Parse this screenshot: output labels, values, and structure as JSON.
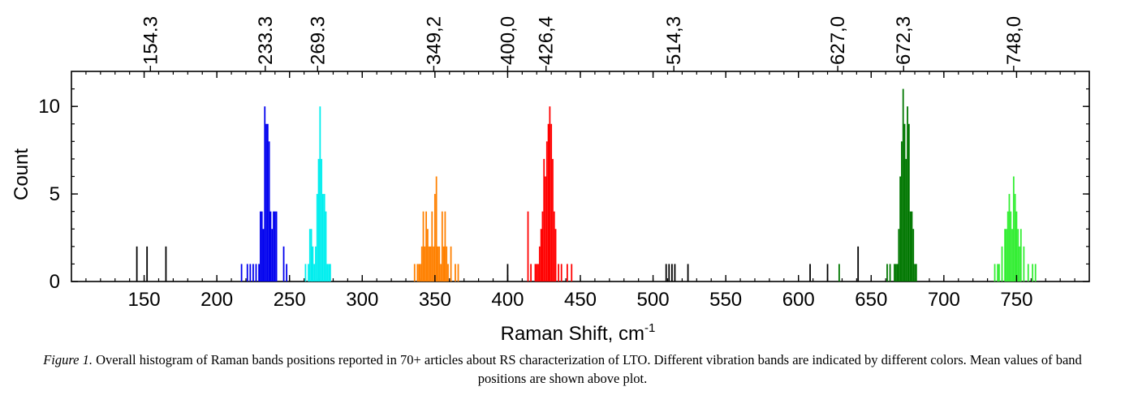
{
  "chart_data": {
    "type": "bar",
    "ylabel": "Count",
    "xlabel_main": "Raman Shift, cm",
    "xlabel_sup": "-1",
    "xlim": [
      100,
      800
    ],
    "ylim": [
      0,
      12
    ],
    "x_ticks": [
      "150",
      "200",
      "250",
      "300",
      "350",
      "400",
      "450",
      "500",
      "550",
      "600",
      "650",
      "700",
      "750"
    ],
    "y_ticks": [
      "0",
      "5",
      "10"
    ],
    "top_labels": [
      {
        "x": 154.3,
        "label": "154.3"
      },
      {
        "x": 233.3,
        "label": "233.3"
      },
      {
        "x": 269.3,
        "label": "269.3"
      },
      {
        "x": 349.2,
        "label": "349,2"
      },
      {
        "x": 400.0,
        "label": "400,0"
      },
      {
        "x": 426.4,
        "label": "426,4"
      },
      {
        "x": 514.3,
        "label": "514,3"
      },
      {
        "x": 627.0,
        "label": "627,0"
      },
      {
        "x": 672.3,
        "label": "672,3"
      },
      {
        "x": 748.0,
        "label": "748,0"
      }
    ],
    "grid": false,
    "series": [
      {
        "color": "#000000",
        "points": [
          [
            145,
            2
          ],
          [
            152,
            2
          ],
          [
            165,
            2
          ],
          [
            400,
            1
          ],
          [
            509,
            1
          ],
          [
            511,
            1
          ],
          [
            513,
            1
          ],
          [
            515,
            1
          ],
          [
            524,
            1
          ],
          [
            608,
            1
          ],
          [
            620,
            1
          ],
          [
            641,
            2
          ]
        ]
      },
      {
        "color": "#0000ee",
        "points": [
          [
            217,
            1
          ],
          [
            221,
            1
          ],
          [
            223,
            1
          ],
          [
            225,
            1
          ],
          [
            227,
            1
          ],
          [
            229,
            1
          ],
          [
            230,
            4
          ],
          [
            231,
            4
          ],
          [
            232,
            3
          ],
          [
            233,
            10
          ],
          [
            234,
            9
          ],
          [
            235,
            9
          ],
          [
            236,
            8
          ],
          [
            237,
            4
          ],
          [
            238,
            3
          ],
          [
            239,
            4
          ],
          [
            240,
            4
          ],
          [
            241,
            4
          ],
          [
            246,
            2
          ],
          [
            248,
            1
          ]
        ]
      },
      {
        "color": "#00eeee",
        "points": [
          [
            261,
            1
          ],
          [
            263,
            1
          ],
          [
            264,
            3
          ],
          [
            265,
            3
          ],
          [
            266,
            2
          ],
          [
            267,
            1
          ],
          [
            268,
            2
          ],
          [
            269,
            5
          ],
          [
            270,
            7
          ],
          [
            271,
            10
          ],
          [
            272,
            7
          ],
          [
            273,
            5
          ],
          [
            274,
            5
          ],
          [
            275,
            4
          ],
          [
            276,
            1
          ],
          [
            277,
            1
          ],
          [
            278,
            1
          ]
        ]
      },
      {
        "color": "#ff8000",
        "points": [
          [
            336,
            1
          ],
          [
            338,
            1
          ],
          [
            339,
            1
          ],
          [
            340,
            1
          ],
          [
            341,
            2
          ],
          [
            342,
            4
          ],
          [
            343,
            2
          ],
          [
            344,
            4
          ],
          [
            345,
            3
          ],
          [
            346,
            2
          ],
          [
            347,
            2
          ],
          [
            348,
            4
          ],
          [
            349,
            2
          ],
          [
            350,
            5
          ],
          [
            351,
            6
          ],
          [
            352,
            2
          ],
          [
            353,
            2
          ],
          [
            354,
            1
          ],
          [
            355,
            4
          ],
          [
            356,
            2
          ],
          [
            357,
            4
          ],
          [
            358,
            2
          ],
          [
            359,
            1
          ],
          [
            361,
            2
          ],
          [
            364,
            1
          ],
          [
            366,
            1
          ]
        ]
      },
      {
        "color": "#ff0000",
        "points": [
          [
            414,
            4
          ],
          [
            416,
            1
          ],
          [
            419,
            1
          ],
          [
            420,
            1
          ],
          [
            421,
            1
          ],
          [
            422,
            2
          ],
          [
            423,
            3
          ],
          [
            424,
            4
          ],
          [
            425,
            7
          ],
          [
            426,
            6
          ],
          [
            427,
            8
          ],
          [
            428,
            9
          ],
          [
            429,
            10
          ],
          [
            430,
            9
          ],
          [
            431,
            7
          ],
          [
            432,
            4
          ],
          [
            433,
            3
          ],
          [
            435,
            1
          ],
          [
            437,
            1
          ],
          [
            441,
            1
          ],
          [
            444,
            1
          ]
        ]
      },
      {
        "color": "#007700",
        "points": [
          [
            628,
            1
          ],
          [
            661,
            1
          ],
          [
            663,
            1
          ],
          [
            666,
            1
          ],
          [
            667,
            1
          ],
          [
            668,
            1
          ],
          [
            669,
            3
          ],
          [
            670,
            6
          ],
          [
            671,
            8
          ],
          [
            672,
            11
          ],
          [
            673,
            9
          ],
          [
            674,
            7
          ],
          [
            675,
            10
          ],
          [
            676,
            9
          ],
          [
            677,
            4
          ],
          [
            678,
            4
          ],
          [
            679,
            3
          ],
          [
            680,
            1
          ],
          [
            681,
            1
          ]
        ]
      },
      {
        "color": "#33ee33",
        "points": [
          [
            735,
            1
          ],
          [
            737,
            1
          ],
          [
            738,
            1
          ],
          [
            740,
            2
          ],
          [
            742,
            3
          ],
          [
            743,
            3
          ],
          [
            744,
            4
          ],
          [
            745,
            5
          ],
          [
            746,
            4
          ],
          [
            747,
            3
          ],
          [
            748,
            6
          ],
          [
            749,
            5
          ],
          [
            750,
            4
          ],
          [
            751,
            3
          ],
          [
            752,
            2
          ],
          [
            753,
            3
          ],
          [
            755,
            2
          ],
          [
            758,
            1
          ],
          [
            761,
            1
          ],
          [
            763,
            1
          ]
        ]
      }
    ]
  },
  "caption": {
    "figure_label": "Figure 1.",
    "text": "Overall histogram of Raman bands positions reported in 70+ articles about RS characterization of LTO. Different vibration bands are indicated by different colors. Mean values of band positions are shown above plot."
  }
}
